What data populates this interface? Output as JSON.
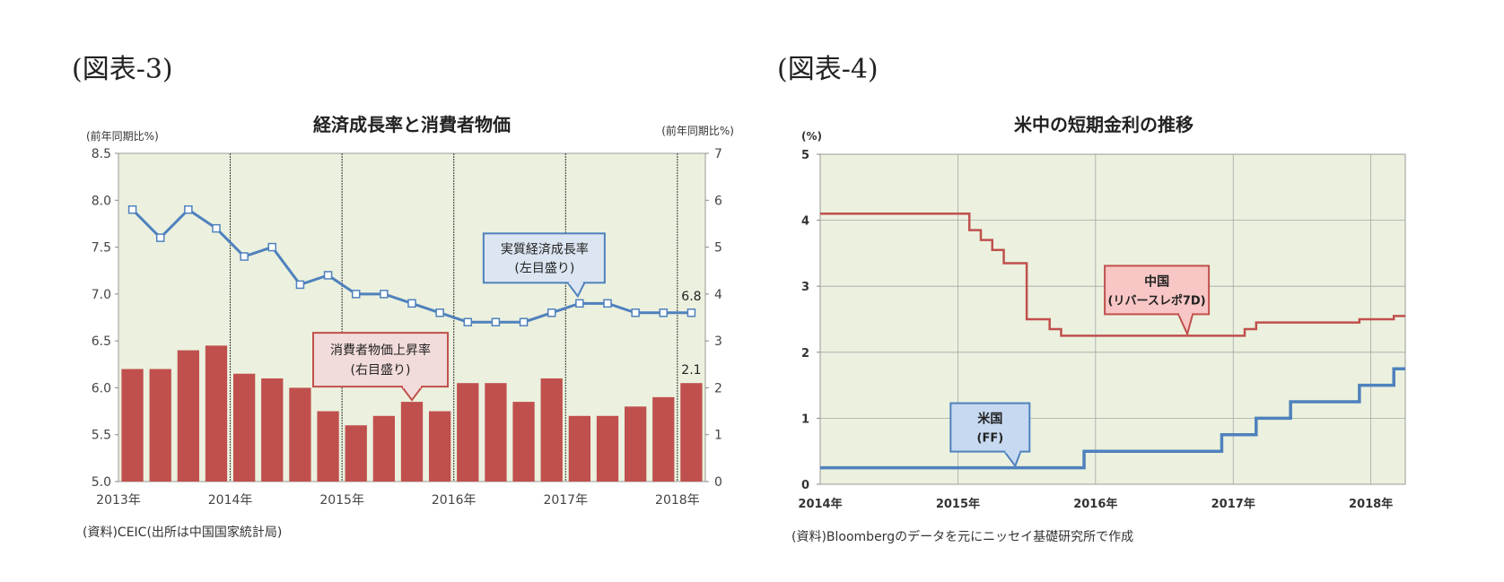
{
  "figure3": {
    "label": "(図表-3)",
    "source": "(資料)CEIC(出所は中国国家統計局)"
  },
  "figure4": {
    "label": "(図表-4)",
    "source": "(資料)Bloombergのデータを元にニッセイ基礎研究所で作成"
  },
  "chart_data": [
    {
      "type": "bar+line",
      "title": "経済成長率と消費者物価",
      "left_axis_unit": "(前年同期比%)",
      "right_axis_unit": "(前年同期比%)",
      "left_ylim": [
        5.0,
        8.5
      ],
      "left_ticks": [
        "5.0",
        "5.5",
        "6.0",
        "6.5",
        "7.0",
        "7.5",
        "8.0",
        "8.5"
      ],
      "right_ylim": [
        0,
        7
      ],
      "right_ticks": [
        "0",
        "1",
        "2",
        "3",
        "4",
        "5",
        "6",
        "7"
      ],
      "x_tick_labels": [
        "2013年",
        "2014年",
        "2015年",
        "2016年",
        "2017年",
        "2018年"
      ],
      "grid": "vertical year separators",
      "series": [
        {
          "name": "実質経済成長率",
          "kind": "line",
          "axis": "left",
          "color": "#4f81bd",
          "values": [
            7.9,
            7.6,
            7.9,
            7.7,
            7.4,
            7.5,
            7.1,
            7.2,
            7.0,
            7.0,
            6.9,
            6.8,
            6.7,
            6.7,
            6.7,
            6.8,
            6.9,
            6.9,
            6.8,
            6.8,
            6.8
          ]
        },
        {
          "name": "消費者物価上昇率",
          "kind": "bar",
          "axis": "right",
          "color": "#c0504d",
          "values": [
            2.4,
            2.4,
            2.8,
            2.9,
            2.3,
            2.2,
            2.0,
            1.5,
            1.2,
            1.4,
            1.7,
            1.5,
            2.1,
            2.1,
            1.7,
            2.2,
            1.4,
            1.4,
            1.6,
            1.8,
            2.1
          ]
        }
      ],
      "callouts": [
        {
          "line1": "実質経済成長率",
          "line2": "(左目盛り)"
        },
        {
          "line1": "消費者物価上昇率",
          "line2": "(右目盛り)"
        }
      ],
      "end_labels": {
        "line": "6.8",
        "bar": "2.1"
      }
    },
    {
      "type": "step-line",
      "title": "米中の短期金利の推移",
      "y_unit": "(%)",
      "ylim": [
        0,
        5
      ],
      "y_ticks": [
        "0",
        "1",
        "2",
        "3",
        "4",
        "5"
      ],
      "x_tick_labels": [
        "2014年",
        "2015年",
        "2016年",
        "2017年",
        "2018年"
      ],
      "xlim": [
        "2014-01",
        "2018-04"
      ],
      "grid": "on",
      "series": [
        {
          "name": "中国",
          "legend_line2": "(リバースレポ7D)",
          "color": "#c0504d",
          "x": [
            "2014-01",
            "2015-02",
            "2015-03",
            "2015-04",
            "2015-05",
            "2015-06",
            "2015-07",
            "2015-08",
            "2015-09",
            "2015-10",
            "2016-01",
            "2016-06",
            "2016-12",
            "2017-01",
            "2017-02",
            "2017-03",
            "2017-04",
            "2017-12",
            "2018-01",
            "2018-03",
            "2018-04"
          ],
          "values": [
            4.1,
            3.85,
            3.7,
            3.55,
            3.35,
            3.35,
            2.5,
            2.5,
            2.35,
            2.25,
            2.25,
            2.25,
            2.25,
            2.25,
            2.35,
            2.45,
            2.45,
            2.5,
            2.5,
            2.55,
            2.55
          ]
        },
        {
          "name": "米国",
          "legend_line2": "(FF)",
          "color": "#4f81bd",
          "x": [
            "2014-01",
            "2015-12",
            "2016-12",
            "2017-03",
            "2017-06",
            "2017-12",
            "2018-03",
            "2018-04"
          ],
          "values": [
            0.25,
            0.5,
            0.75,
            1.0,
            1.25,
            1.5,
            1.75,
            1.75
          ]
        }
      ]
    }
  ]
}
